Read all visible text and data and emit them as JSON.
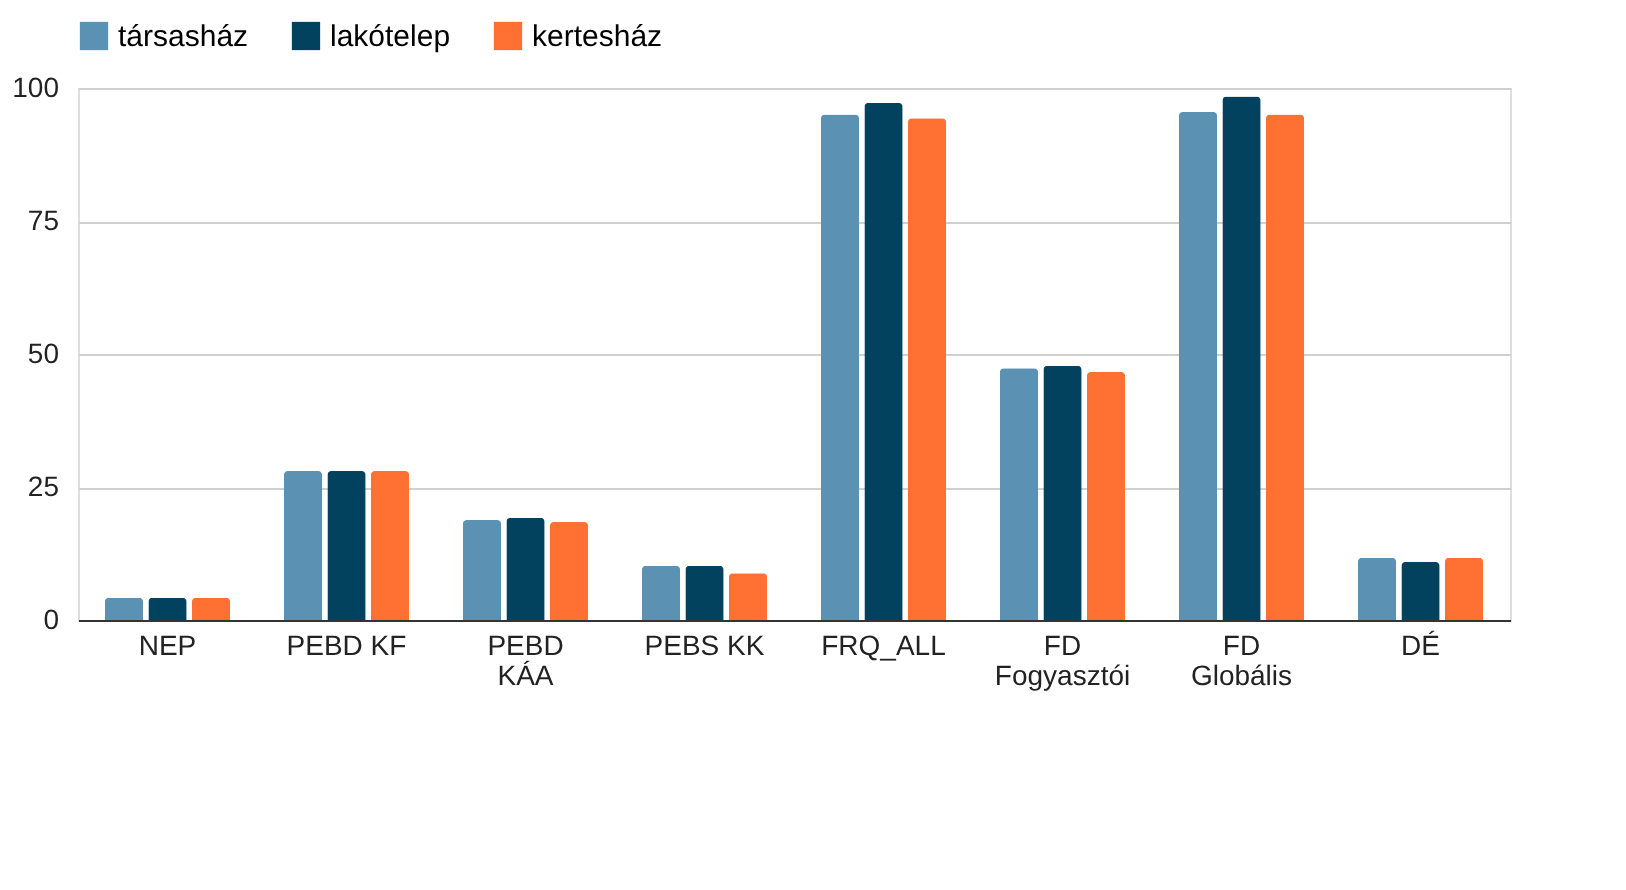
{
  "chart_data": {
    "type": "bar",
    "categories": [
      "NEP",
      "PEBD KF",
      "PEBD\nKÁA",
      "PEBS KK",
      "FRQ_ALL",
      "FD\nFogyasztói",
      "FD\nGlobális",
      "DÉ"
    ],
    "series": [
      {
        "name": "társasház",
        "color": "#5b92b3",
        "values": [
          4.2,
          28.0,
          18.8,
          10.2,
          95.0,
          47.3,
          95.5,
          11.7
        ]
      },
      {
        "name": "lakótelep",
        "color": "#02425f",
        "values": [
          4.2,
          28.0,
          19.2,
          10.2,
          97.2,
          47.8,
          98.4,
          10.9
        ]
      },
      {
        "name": "kertesház",
        "color": "#ff7032",
        "values": [
          4.2,
          28.0,
          18.4,
          8.8,
          94.3,
          46.6,
          95.0,
          11.7
        ]
      }
    ],
    "ylim": [
      0,
      100
    ],
    "yticks": [
      0,
      25,
      50,
      75,
      100
    ],
    "grid": "y",
    "legend": "top"
  }
}
